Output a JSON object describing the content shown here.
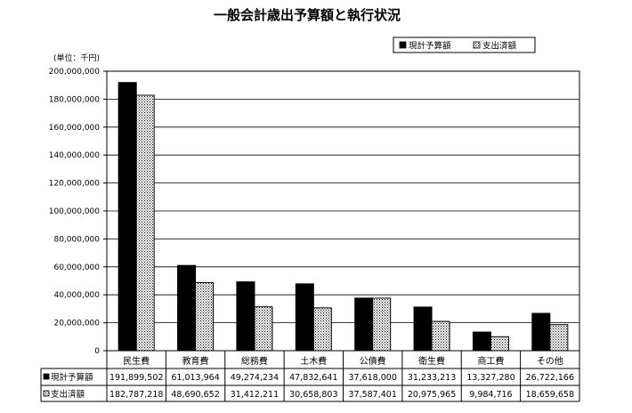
{
  "chart_data": {
    "type": "bar",
    "title": "一般会計歳出予算額と執行状況",
    "unit_label": "(単位：千円)",
    "categories": [
      "民生費",
      "教育費",
      "総務費",
      "土木費",
      "公債費",
      "衛生費",
      "商工費",
      "その他"
    ],
    "series": [
      {
        "name": "現計予算額",
        "color": "#000000",
        "values": [
          191899502,
          61013964,
          49274234,
          47832641,
          37618000,
          31233213,
          13327280,
          26722166
        ],
        "labels": [
          "191,899,502",
          "61,013,964",
          "49,274,234",
          "47,832,641",
          "37,618,000",
          "31,233,213",
          "13,327,280",
          "26,722,166"
        ]
      },
      {
        "name": "支出済額",
        "color": "#ffffff",
        "pattern": "dotted",
        "values": [
          182787218,
          48690652,
          31412211,
          30658803,
          37587401,
          20975965,
          9984716,
          18659658
        ],
        "labels": [
          "182,787,218",
          "48,690,652",
          "31,412,211",
          "30,658,803",
          "37,587,401",
          "20,975,965",
          "9,984,716",
          "18,659,658"
        ]
      }
    ],
    "ylim": [
      0,
      200000000
    ],
    "yticks": [
      0,
      20000000,
      40000000,
      60000000,
      80000000,
      100000000,
      120000000,
      140000000,
      160000000,
      180000000,
      200000000
    ],
    "ytick_labels": [
      "0",
      "20,000,000",
      "40,000,000",
      "60,000,000",
      "80,000,000",
      "100,000,000",
      "120,000,000",
      "140,000,000",
      "160,000,000",
      "180,000,000",
      "200,000,000"
    ],
    "grid": true,
    "legend": "top-right",
    "table_below": true
  }
}
